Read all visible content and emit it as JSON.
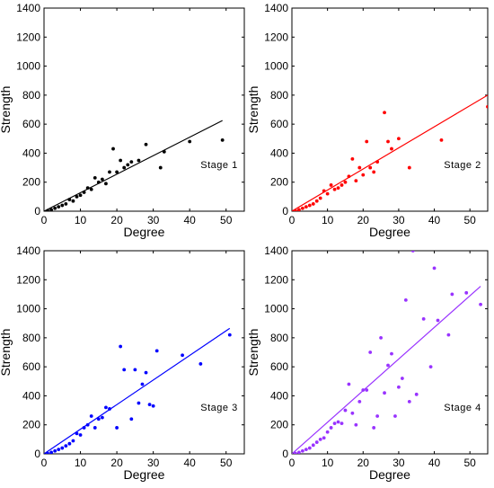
{
  "chart_data": [
    {
      "type": "scatter",
      "stage_label": "Stage 1",
      "xlabel": "Degree",
      "ylabel": "Strength",
      "xlim": [
        0,
        55
      ],
      "ylim": [
        0,
        1400
      ],
      "xticks": [
        "0",
        "10",
        "20",
        "30",
        "40",
        "50"
      ],
      "yticks": [
        "0",
        "200",
        "400",
        "600",
        "800",
        "1000",
        "1200",
        "1400"
      ],
      "color": "#000000",
      "points": [
        [
          1,
          3
        ],
        [
          2,
          10
        ],
        [
          3,
          20
        ],
        [
          4,
          30
        ],
        [
          5,
          40
        ],
        [
          6,
          50
        ],
        [
          7,
          80
        ],
        [
          8,
          70
        ],
        [
          9,
          100
        ],
        [
          10,
          110
        ],
        [
          11,
          130
        ],
        [
          12,
          160
        ],
        [
          13,
          150
        ],
        [
          14,
          230
        ],
        [
          15,
          200
        ],
        [
          16,
          220
        ],
        [
          17,
          190
        ],
        [
          18,
          270
        ],
        [
          19,
          430
        ],
        [
          20,
          270
        ],
        [
          21,
          350
        ],
        [
          22,
          300
        ],
        [
          23,
          320
        ],
        [
          24,
          340
        ],
        [
          26,
          350
        ],
        [
          28,
          460
        ],
        [
          32,
          300
        ],
        [
          33,
          410
        ],
        [
          40,
          480
        ],
        [
          49,
          490
        ]
      ],
      "fit_line": [
        [
          0,
          0
        ],
        [
          49,
          625
        ]
      ]
    },
    {
      "type": "scatter",
      "stage_label": "Stage 2",
      "xlabel": "Degree",
      "ylabel": "Strength",
      "xlim": [
        0,
        55
      ],
      "ylim": [
        0,
        1400
      ],
      "xticks": [
        "0",
        "10",
        "20",
        "30",
        "40",
        "50"
      ],
      "yticks": [
        "0",
        "200",
        "400",
        "600",
        "800",
        "1000",
        "1200",
        "1400"
      ],
      "color": "#ff0000",
      "points": [
        [
          1,
          3
        ],
        [
          2,
          10
        ],
        [
          3,
          20
        ],
        [
          4,
          30
        ],
        [
          5,
          40
        ],
        [
          6,
          50
        ],
        [
          7,
          70
        ],
        [
          8,
          90
        ],
        [
          9,
          140
        ],
        [
          10,
          120
        ],
        [
          11,
          180
        ],
        [
          12,
          150
        ],
        [
          13,
          160
        ],
        [
          14,
          180
        ],
        [
          15,
          200
        ],
        [
          16,
          240
        ],
        [
          17,
          360
        ],
        [
          18,
          210
        ],
        [
          19,
          300
        ],
        [
          20,
          250
        ],
        [
          21,
          480
        ],
        [
          22,
          300
        ],
        [
          23,
          270
        ],
        [
          24,
          340
        ],
        [
          26,
          680
        ],
        [
          27,
          480
        ],
        [
          28,
          430
        ],
        [
          30,
          500
        ],
        [
          33,
          300
        ],
        [
          42,
          490
        ],
        [
          55,
          720
        ]
      ],
      "fit_line": [
        [
          0,
          0
        ],
        [
          55,
          800
        ]
      ]
    },
    {
      "type": "scatter",
      "stage_label": "Stage 3",
      "xlabel": "Degree",
      "ylabel": "Strength",
      "xlim": [
        0,
        55
      ],
      "ylim": [
        0,
        1400
      ],
      "xticks": [
        "0",
        "10",
        "20",
        "30",
        "40",
        "50"
      ],
      "yticks": [
        "0",
        "200",
        "400",
        "600",
        "800",
        "1000",
        "1200",
        "1400"
      ],
      "color": "#0000ff",
      "points": [
        [
          1,
          3
        ],
        [
          2,
          10
        ],
        [
          3,
          20
        ],
        [
          4,
          30
        ],
        [
          5,
          40
        ],
        [
          6,
          55
        ],
        [
          7,
          70
        ],
        [
          8,
          90
        ],
        [
          9,
          140
        ],
        [
          10,
          130
        ],
        [
          11,
          180
        ],
        [
          12,
          200
        ],
        [
          13,
          260
        ],
        [
          14,
          180
        ],
        [
          15,
          240
        ],
        [
          16,
          250
        ],
        [
          17,
          320
        ],
        [
          18,
          310
        ],
        [
          20,
          180
        ],
        [
          21,
          740
        ],
        [
          22,
          580
        ],
        [
          24,
          240
        ],
        [
          25,
          580
        ],
        [
          26,
          350
        ],
        [
          27,
          480
        ],
        [
          28,
          560
        ],
        [
          29,
          340
        ],
        [
          30,
          330
        ],
        [
          31,
          710
        ],
        [
          38,
          680
        ],
        [
          43,
          620
        ],
        [
          51,
          820
        ]
      ],
      "fit_line": [
        [
          0,
          0
        ],
        [
          51,
          865
        ]
      ]
    },
    {
      "type": "scatter",
      "stage_label": "Stage 4",
      "xlabel": "Degree",
      "ylabel": "Strength",
      "xlim": [
        0,
        55
      ],
      "ylim": [
        0,
        1400
      ],
      "xticks": [
        "0",
        "10",
        "20",
        "30",
        "40",
        "50"
      ],
      "yticks": [
        "0",
        "200",
        "400",
        "600",
        "800",
        "1000",
        "1200",
        "1400"
      ],
      "color": "#9933ff",
      "points": [
        [
          1,
          3
        ],
        [
          2,
          10
        ],
        [
          3,
          20
        ],
        [
          4,
          30
        ],
        [
          5,
          40
        ],
        [
          6,
          60
        ],
        [
          7,
          80
        ],
        [
          8,
          100
        ],
        [
          9,
          110
        ],
        [
          10,
          150
        ],
        [
          11,
          180
        ],
        [
          12,
          210
        ],
        [
          13,
          220
        ],
        [
          14,
          210
        ],
        [
          15,
          300
        ],
        [
          16,
          480
        ],
        [
          17,
          280
        ],
        [
          18,
          200
        ],
        [
          19,
          360
        ],
        [
          20,
          440
        ],
        [
          21,
          440
        ],
        [
          22,
          700
        ],
        [
          23,
          180
        ],
        [
          24,
          260
        ],
        [
          25,
          800
        ],
        [
          26,
          420
        ],
        [
          27,
          610
        ],
        [
          28,
          690
        ],
        [
          29,
          260
        ],
        [
          30,
          460
        ],
        [
          31,
          520
        ],
        [
          32,
          1060
        ],
        [
          33,
          360
        ],
        [
          34,
          1400
        ],
        [
          35,
          410
        ],
        [
          37,
          930
        ],
        [
          39,
          600
        ],
        [
          40,
          1280
        ],
        [
          41,
          920
        ],
        [
          44,
          820
        ],
        [
          45,
          1100
        ],
        [
          49,
          1110
        ],
        [
          53,
          1030
        ]
      ],
      "fit_line": [
        [
          0,
          0
        ],
        [
          53,
          1155
        ]
      ]
    }
  ]
}
